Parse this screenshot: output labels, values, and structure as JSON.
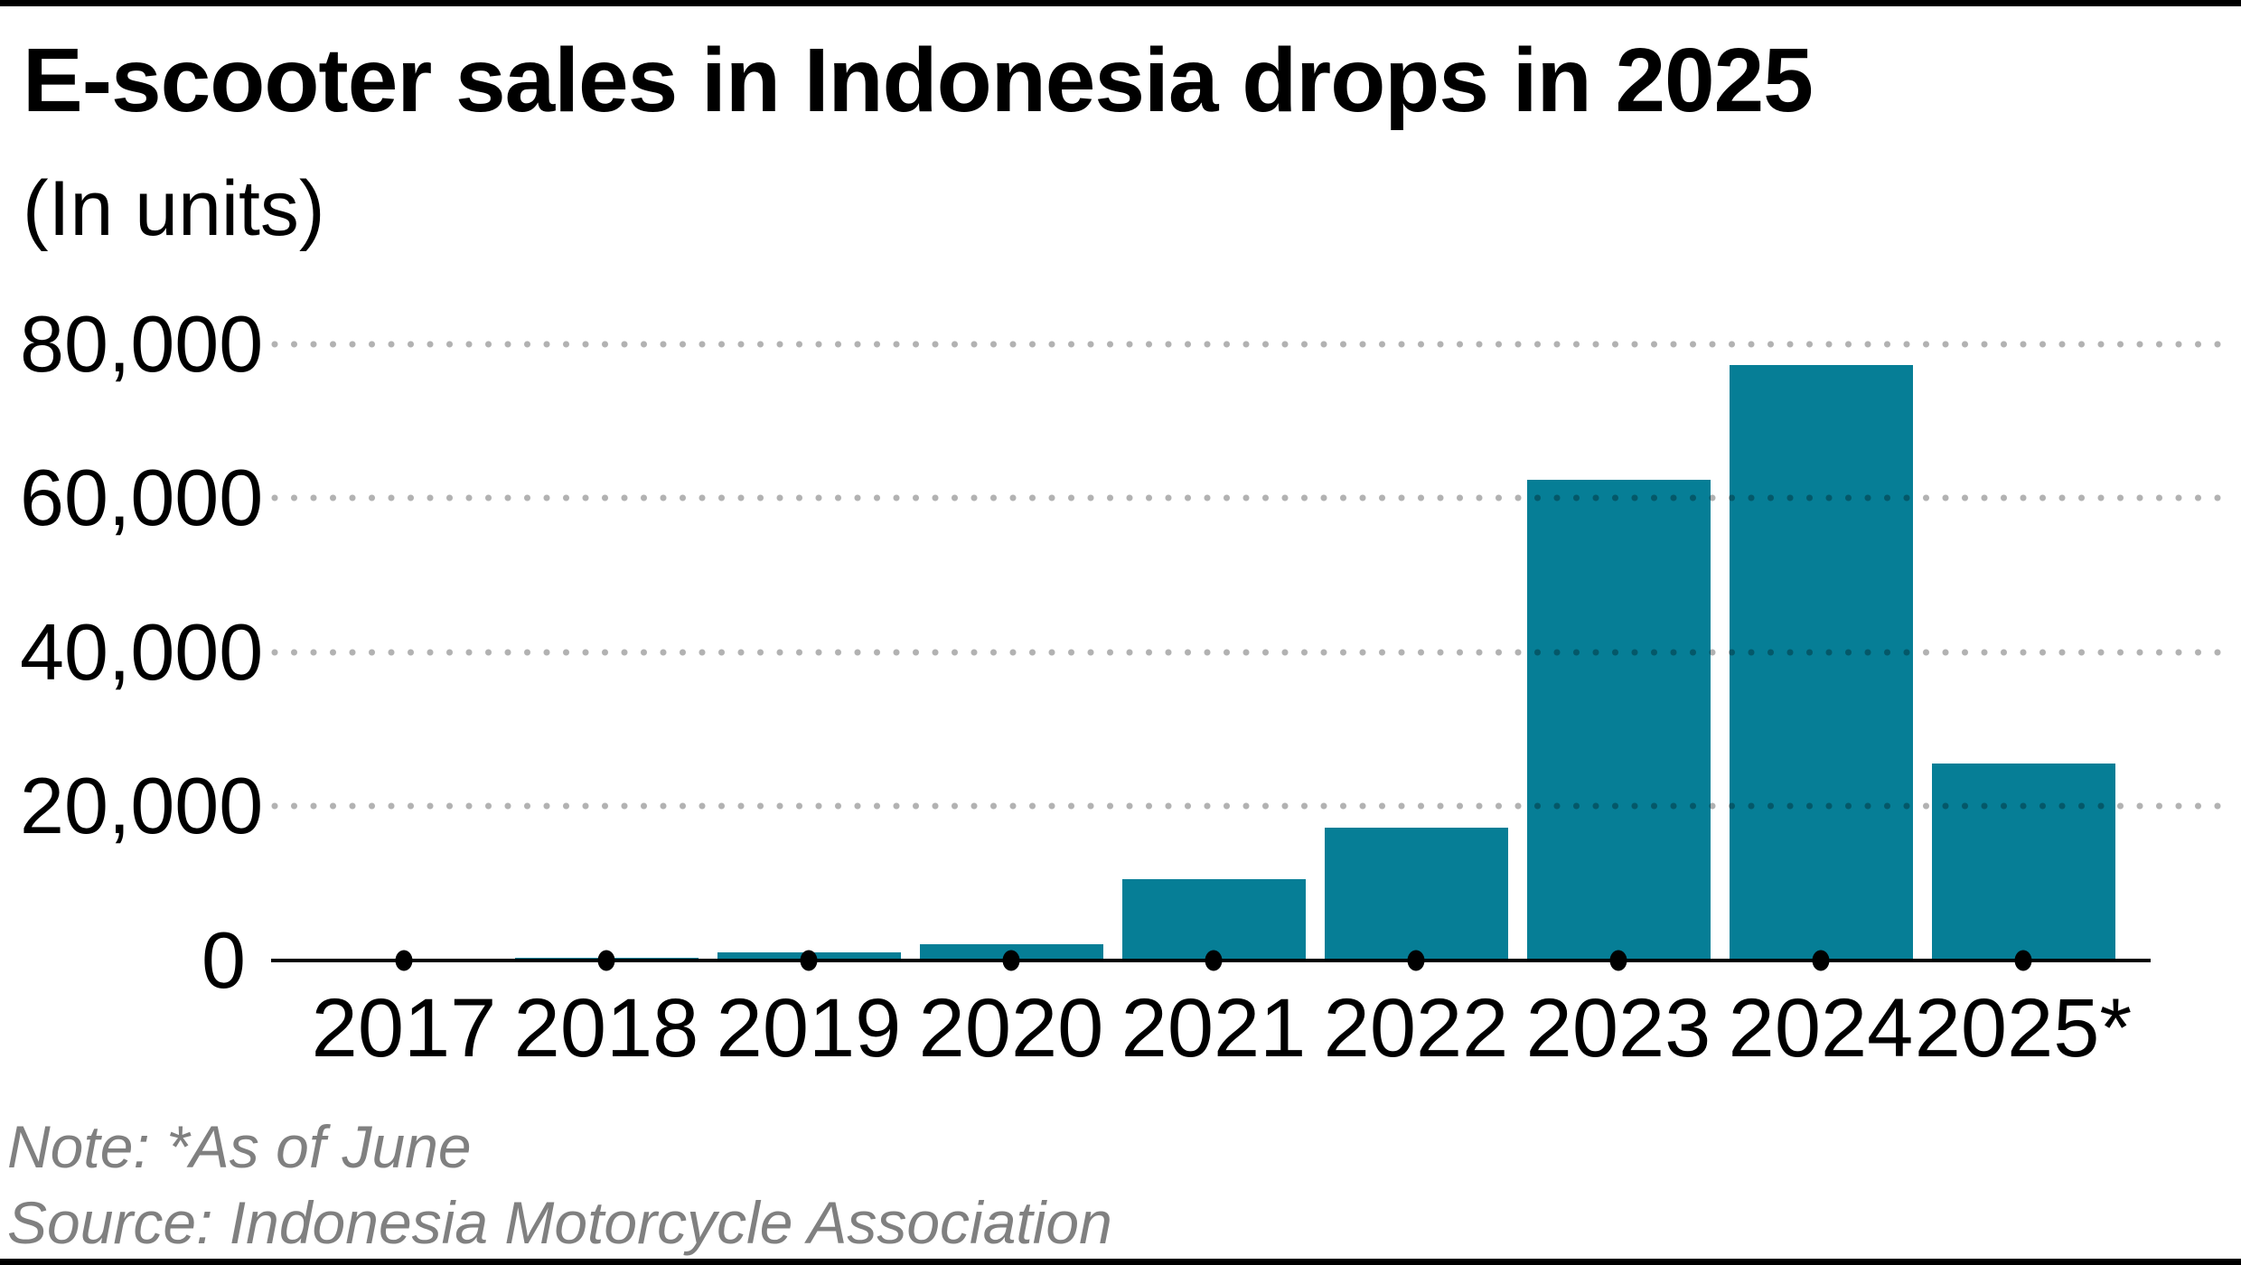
{
  "title": "E-scooter sales in Indonesia drops in 2025",
  "subtitle": "(In units)",
  "footer": {
    "note": "Note: *As of June",
    "source": "Source: Indonesia Motorcycle Association"
  },
  "colors": {
    "bar": "#067e96",
    "axis": "#000000",
    "gridline_dots": "rgba(0,0,0,0.30)",
    "footer_text": "#808080",
    "title_text": "#000000"
  },
  "chart_data": {
    "type": "bar",
    "title": "E-scooter sales in Indonesia drops in 2025",
    "subtitle_unit_label": "(In units)",
    "categories": [
      "2017",
      "2018",
      "2019",
      "2020",
      "2021",
      "2022",
      "2023",
      "2024",
      "2025*"
    ],
    "values": [
      0,
      300,
      1000,
      2100,
      10500,
      17200,
      62400,
      77200,
      25500
    ],
    "xlabel": "",
    "ylabel": "units",
    "ylim": [
      0,
      80000
    ],
    "ytick_values": [
      0,
      20000,
      40000,
      60000,
      80000
    ],
    "ytick_labels": [
      "0",
      "20,000",
      "40,000",
      "60,000",
      "80,000"
    ],
    "grid": "horizontal dotted gridlines, drawn over bars",
    "legend": "none",
    "annotations": [
      "Note: *As of June",
      "Source: Indonesia Motorcycle Association"
    ]
  }
}
